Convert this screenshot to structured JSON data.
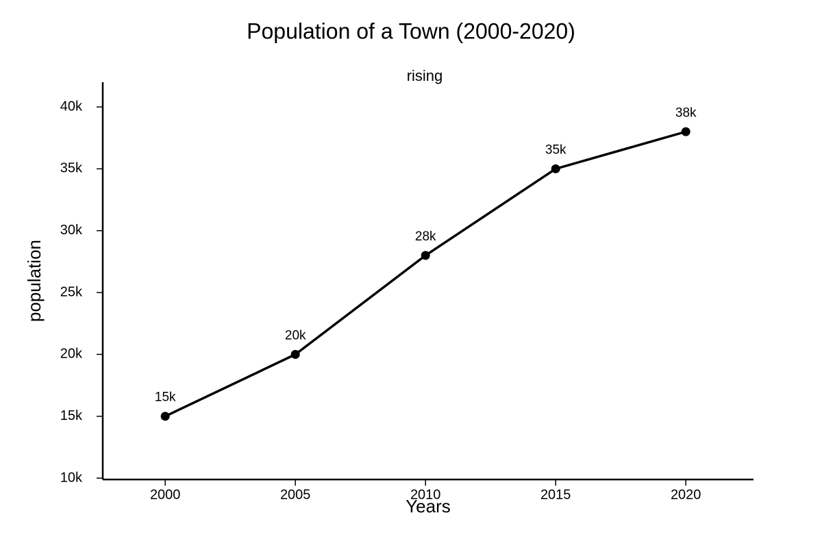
{
  "chart_data": {
    "type": "line",
    "title": "Population of a Town (2000-2020)",
    "subtitle": "rising",
    "x_label": "Years",
    "y_label": "population",
    "x": [
      2000,
      2005,
      2010,
      2015,
      2020
    ],
    "series": [
      {
        "name": "population",
        "color": "#000000",
        "values": [
          15000,
          20000,
          28000,
          35000,
          38000
        ],
        "value_labels": [
          "15k",
          "20k",
          "28k",
          "35k",
          "38k"
        ]
      }
    ],
    "xlim": [
      1997.6,
      2022.6
    ],
    "xticks": [
      2000,
      2005,
      2010,
      2015,
      2020
    ],
    "ylim": [
      10000,
      42000
    ],
    "yticks": [
      {
        "value": 10000,
        "label": "10k"
      },
      {
        "value": 15000,
        "label": "15k"
      },
      {
        "value": 20000,
        "label": "20k"
      },
      {
        "value": 25000,
        "label": "25k"
      },
      {
        "value": 30000,
        "label": "30k"
      },
      {
        "value": 35000,
        "label": "35k"
      },
      {
        "value": 40000,
        "label": "40k"
      }
    ],
    "grid": false
  }
}
